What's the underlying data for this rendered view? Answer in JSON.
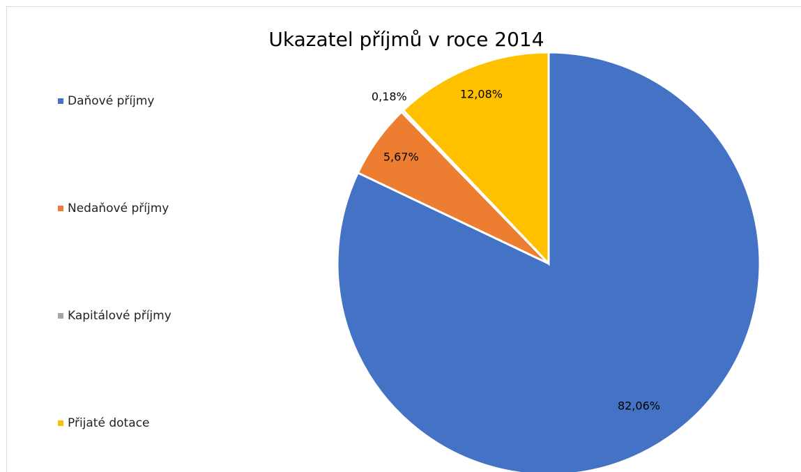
{
  "chart_data": {
    "type": "pie",
    "title": "Ukazatel příjmů v roce 2014",
    "categories": [
      "Daňové příjmy",
      "Nedaňové příjmy",
      "Kapitálové příjmy",
      "Přijaté dotace"
    ],
    "values": [
      82.06,
      5.67,
      0.18,
      12.08
    ],
    "value_labels": [
      "82,06%",
      "5,67%",
      "0,18%",
      "12,08%"
    ],
    "colors": [
      "#4472c4",
      "#ed7d31",
      "#a5a5a5",
      "#ffc000"
    ],
    "legend": "left"
  }
}
